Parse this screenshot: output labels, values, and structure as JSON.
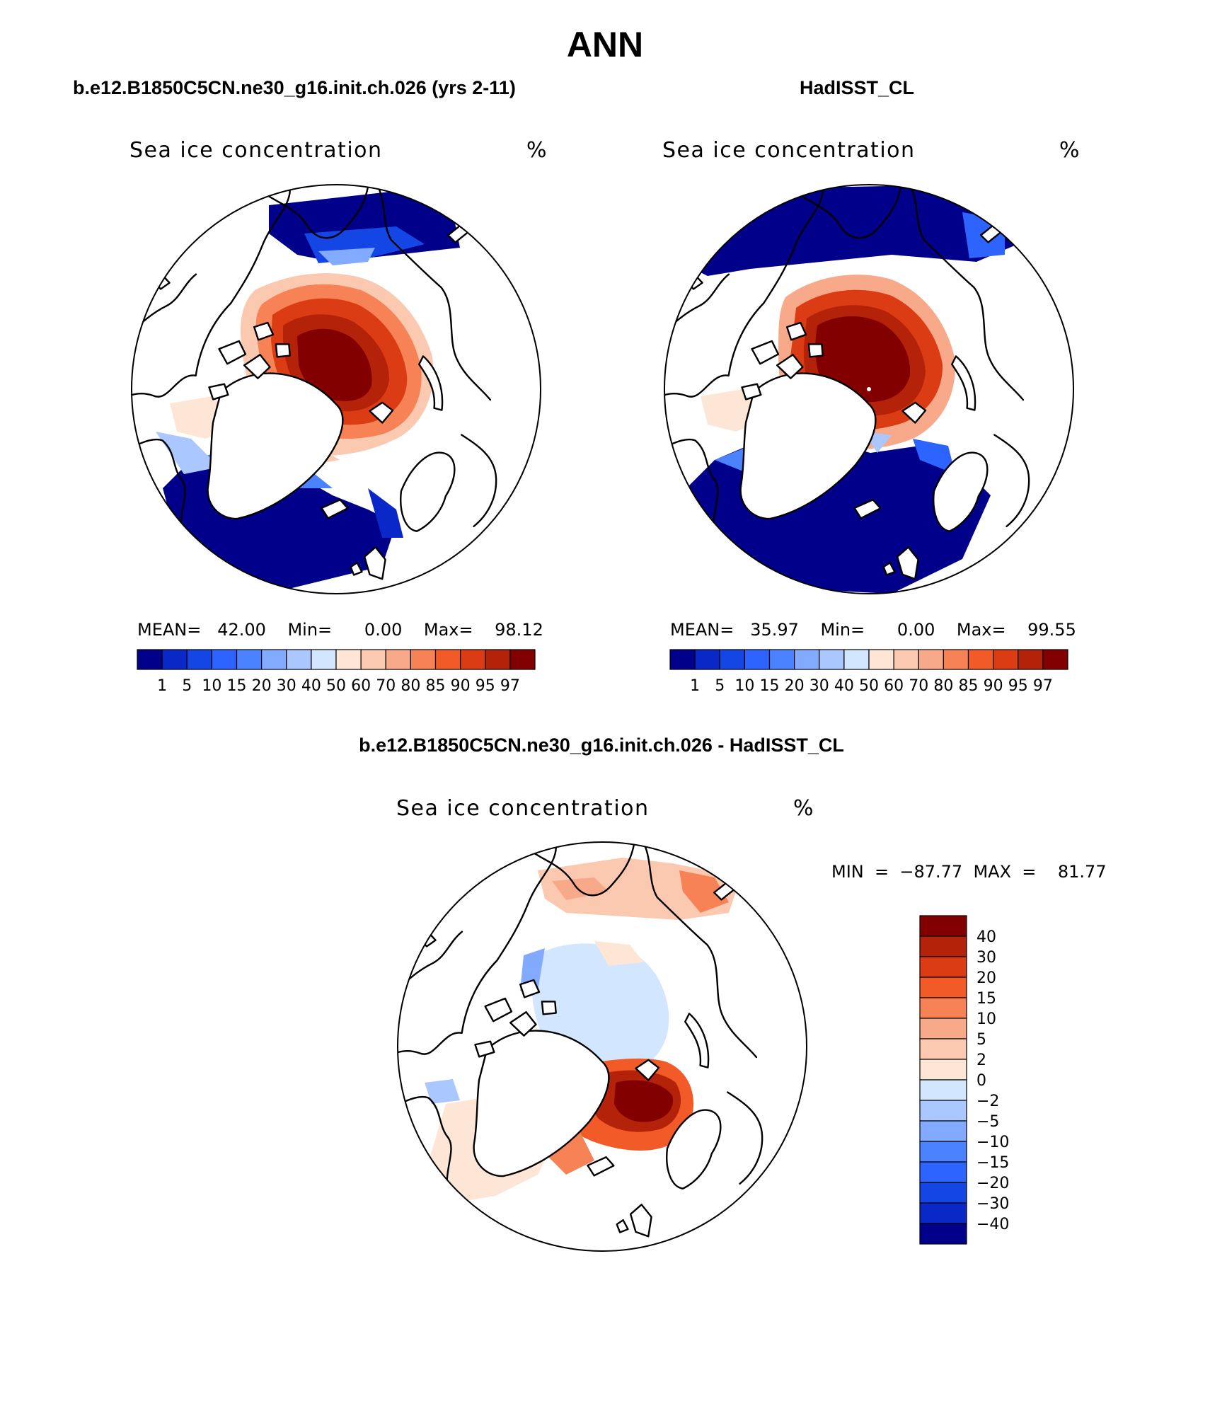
{
  "title": "ANN",
  "colors": {
    "abs": [
      "#00008b",
      "#0a28c8",
      "#1446e6",
      "#2d64ff",
      "#4b82ff",
      "#82aaff",
      "#aac8ff",
      "#d2e6ff",
      "#fde6d6",
      "#fbc8b0",
      "#f8a98a",
      "#f68256",
      "#f25a28",
      "#dc3c14",
      "#b4220a",
      "#820000"
    ],
    "diff": [
      "#00008b",
      "#0a28c8",
      "#1446e6",
      "#2d64ff",
      "#4b82ff",
      "#82aaff",
      "#aac8ff",
      "#d2e6ff",
      "#fde6d6",
      "#fbc8b0",
      "#f8a98a",
      "#f68256",
      "#f25a28",
      "#dc3c14",
      "#b4220a",
      "#820000"
    ]
  },
  "panels": {
    "model": {
      "header": "b.e12.B1850C5CN.ne30_g16.init.ch.026 (yrs 2-11)",
      "subtitle": "Sea ice concentration",
      "units": "%",
      "stats_line": "MEAN=   42.00    Min=      0.00    Max=    98.12",
      "colorbar_ticks": [
        "1",
        "5",
        "10",
        "15",
        "20",
        "30",
        "40",
        "50",
        "60",
        "70",
        "80",
        "85",
        "90",
        "95",
        "97"
      ]
    },
    "obs": {
      "header": "HadISST_CL",
      "subtitle": "Sea ice concentration",
      "units": "%",
      "stats_line": "MEAN=   35.97    Min=      0.00    Max=    99.55",
      "colorbar_ticks": [
        "1",
        "5",
        "10",
        "15",
        "20",
        "30",
        "40",
        "50",
        "60",
        "70",
        "80",
        "85",
        "90",
        "95",
        "97"
      ]
    },
    "diff": {
      "header": "b.e12.B1850C5CN.ne30_g16.init.ch.026 - HadISST_CL",
      "subtitle": "Sea ice concentration",
      "units": "%",
      "minmax_line": "MIN  =  −87.77  MAX  =    81.77",
      "colorbar_ticks": [
        "40",
        "30",
        "20",
        "15",
        "10",
        "5",
        "2",
        "0",
        "−2",
        "−5",
        "−10",
        "−15",
        "−20",
        "−30",
        "−40"
      ]
    }
  }
}
